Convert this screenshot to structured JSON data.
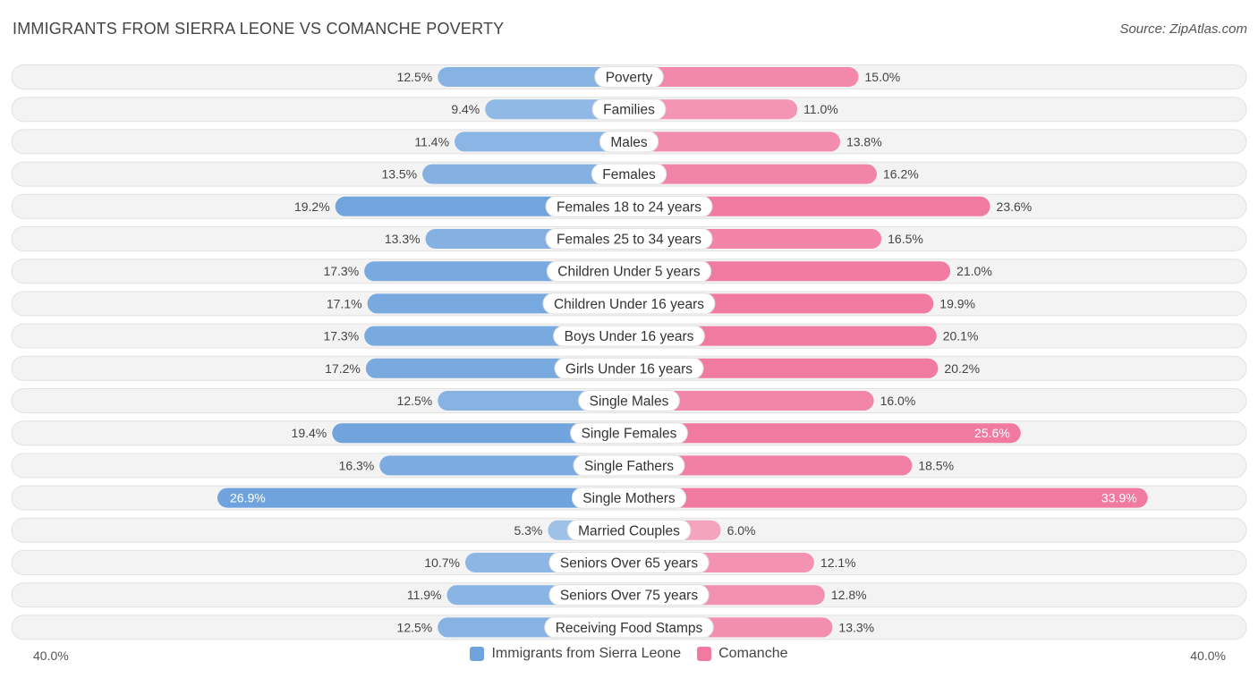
{
  "chart_data": {
    "type": "bar",
    "title": "IMMIGRANTS FROM SIERRA LEONE VS COMANCHE POVERTY",
    "source": "Source: ZipAtlas.com",
    "categories": [
      "Poverty",
      "Families",
      "Males",
      "Females",
      "Females 18 to 24 years",
      "Females 25 to 34 years",
      "Children Under 5 years",
      "Children Under 16 years",
      "Boys Under 16 years",
      "Girls Under 16 years",
      "Single Males",
      "Single Females",
      "Single Fathers",
      "Single Mothers",
      "Married Couples",
      "Seniors Over 65 years",
      "Seniors Over 75 years",
      "Receiving Food Stamps"
    ],
    "series": [
      {
        "name": "Immigrants from Sierra Leone",
        "color": "#6fa3dd",
        "values": [
          12.5,
          9.4,
          11.4,
          13.5,
          19.2,
          13.3,
          17.3,
          17.1,
          17.3,
          17.2,
          12.5,
          19.4,
          16.3,
          26.9,
          5.3,
          10.7,
          11.9,
          12.5
        ],
        "labels": [
          "12.5%",
          "9.4%",
          "11.4%",
          "13.5%",
          "19.2%",
          "13.3%",
          "17.3%",
          "17.1%",
          "17.3%",
          "17.2%",
          "12.5%",
          "19.4%",
          "16.3%",
          "26.9%",
          "5.3%",
          "10.7%",
          "11.9%",
          "12.5%"
        ]
      },
      {
        "name": "Comanche",
        "color": "#f07aa0",
        "values": [
          15.0,
          11.0,
          13.8,
          16.2,
          23.6,
          16.5,
          21.0,
          19.9,
          20.1,
          20.2,
          16.0,
          25.6,
          18.5,
          33.9,
          6.0,
          12.1,
          12.8,
          13.3
        ],
        "labels": [
          "15.0%",
          "11.0%",
          "13.8%",
          "16.2%",
          "23.6%",
          "16.5%",
          "21.0%",
          "19.9%",
          "20.1%",
          "20.2%",
          "16.0%",
          "25.6%",
          "18.5%",
          "33.9%",
          "6.0%",
          "12.1%",
          "12.8%",
          "13.3%"
        ]
      }
    ],
    "xlim": [
      -40,
      40
    ],
    "axis_left_label": "40.0%",
    "axis_right_label": "40.0%",
    "legend_position": "bottom-center"
  }
}
